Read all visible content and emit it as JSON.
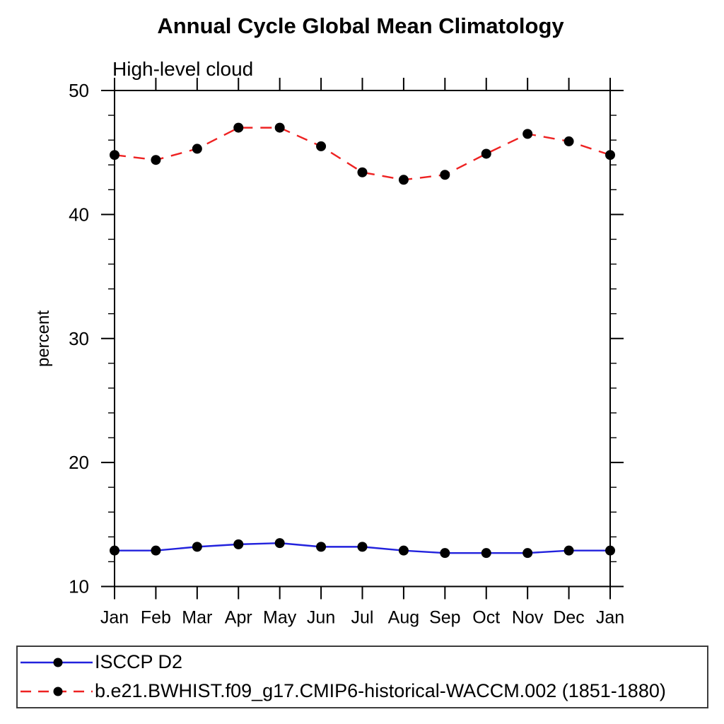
{
  "chart": {
    "title": "Annual Cycle Global Mean Climatology",
    "subtitle": "High-level cloud",
    "ylabel": "percent"
  },
  "legend": {
    "items": [
      {
        "label": "ISCCP D2",
        "color": "#2222dd",
        "line_style": "solid",
        "marker": "black-dot"
      },
      {
        "label": "b.e21.BWHIST.f09_g17.CMIP6-historical-WACCM.002 (1851-1880)",
        "color": "#ee2222",
        "line_style": "dashed",
        "marker": "black-dot"
      }
    ]
  },
  "chart_data": {
    "type": "line",
    "title": "Annual Cycle Global Mean Climatology",
    "subtitle": "High-level cloud",
    "xlabel": "",
    "ylabel": "percent",
    "categories": [
      "Jan",
      "Feb",
      "Mar",
      "Apr",
      "May",
      "Jun",
      "Jul",
      "Aug",
      "Sep",
      "Oct",
      "Nov",
      "Dec",
      "Jan"
    ],
    "series": [
      {
        "name": "ISCCP D2",
        "color": "#2222dd",
        "style": "solid",
        "marker": "black-dot",
        "values": [
          12.9,
          12.9,
          13.2,
          13.4,
          13.5,
          13.2,
          13.2,
          12.9,
          12.7,
          12.7,
          12.7,
          12.9,
          12.9
        ]
      },
      {
        "name": "b.e21.BWHIST.f09_g17.CMIP6-historical-WACCM.002 (1851-1880)",
        "color": "#ee2222",
        "style": "dashed",
        "marker": "black-dot",
        "values": [
          44.8,
          44.4,
          45.3,
          47.0,
          47.0,
          45.5,
          43.4,
          42.8,
          43.2,
          44.9,
          46.5,
          45.9,
          44.8
        ]
      }
    ],
    "ylim": [
      10,
      50
    ],
    "yticks_major": [
      10,
      20,
      30,
      40,
      50
    ],
    "ytick_minor_step": 2,
    "grid": false,
    "legend_position": "bottom",
    "marker_color": "#000000"
  }
}
